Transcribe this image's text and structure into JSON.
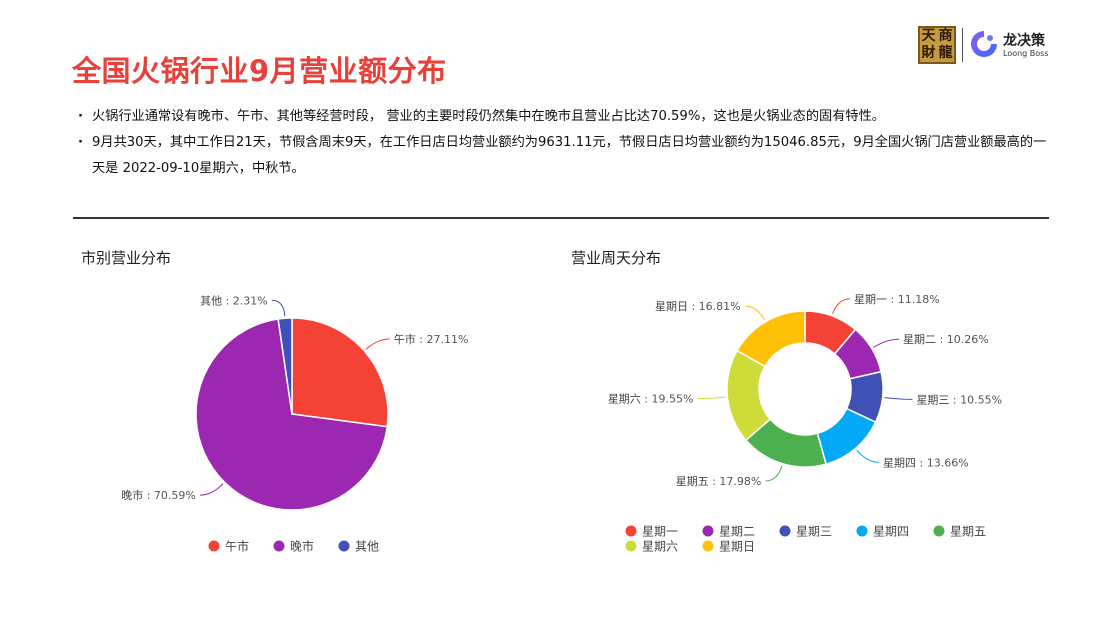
{
  "title": "全国火锅行业9月营业额分布",
  "logo": {
    "seal_chars": [
      "天",
      "商",
      "財",
      "龍"
    ],
    "name": "龙决策",
    "sub": "Loong Boss"
  },
  "bullets": [
    "火锅行业通常设有晚市、午市、其他等经营时段， 营业的主要时段仍然集中在晚市且营业占比达70.59%，这也是火锅业态的固有特性。",
    "9月共30天，其中工作日21天，节假含周末9天，在工作日店日均营业额约为9631.11元，节假日店日均营业额约为15046.85元，9月全国火锅门店营业额最高的一天是 2022-09-10星期六，中秋节。"
  ],
  "colors": {
    "title": "#e8403a",
    "accent": "#e8403a"
  },
  "chart_data": [
    {
      "type": "pie",
      "title": "市别营业分布",
      "categories": [
        "午市",
        "晚市",
        "其他"
      ],
      "values": [
        27.11,
        70.59,
        2.31
      ],
      "unit": "%",
      "colors": [
        "#f44336",
        "#9c27b0",
        "#3f51b5"
      ],
      "legend": "bottom"
    },
    {
      "type": "pie",
      "donut": true,
      "title": "营业周天分布",
      "categories": [
        "星期一",
        "星期二",
        "星期三",
        "星期四",
        "星期五",
        "星期六",
        "星期日"
      ],
      "values": [
        11.18,
        10.26,
        10.55,
        13.66,
        17.98,
        19.55,
        16.81
      ],
      "unit": "%",
      "colors": [
        "#f44336",
        "#9c27b0",
        "#3f51b5",
        "#03a9f4",
        "#4caf50",
        "#cddc39",
        "#ffc107"
      ],
      "legend": "bottom"
    }
  ]
}
